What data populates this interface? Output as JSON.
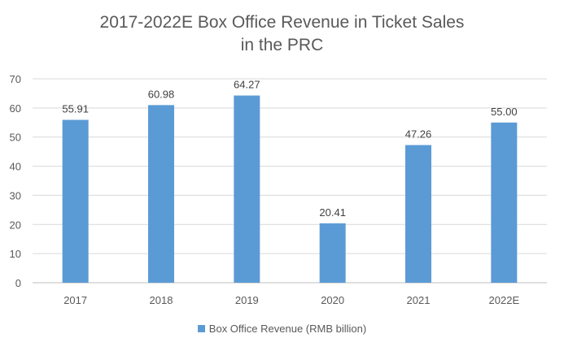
{
  "chart_data": {
    "type": "bar",
    "title_lines": [
      "2017-2022E Box Office Revenue in Ticket Sales",
      "in the PRC"
    ],
    "categories": [
      "2017",
      "2018",
      "2019",
      "2020",
      "2021",
      "2022E"
    ],
    "series": [
      {
        "name": "Box Office Revenue (RMB billion)",
        "values": [
          55.91,
          60.98,
          64.27,
          20.41,
          47.26,
          55.0
        ],
        "labels": [
          "55.91",
          "60.98",
          "64.27",
          "20.41",
          "47.26",
          "55.00"
        ],
        "color": "#5B9BD5"
      }
    ],
    "ylim": [
      0,
      70
    ],
    "yticks": [
      0,
      10,
      20,
      30,
      40,
      50,
      60,
      70
    ],
    "grid": true,
    "gridColor": "#D9D9D9",
    "legend": "bottom"
  }
}
